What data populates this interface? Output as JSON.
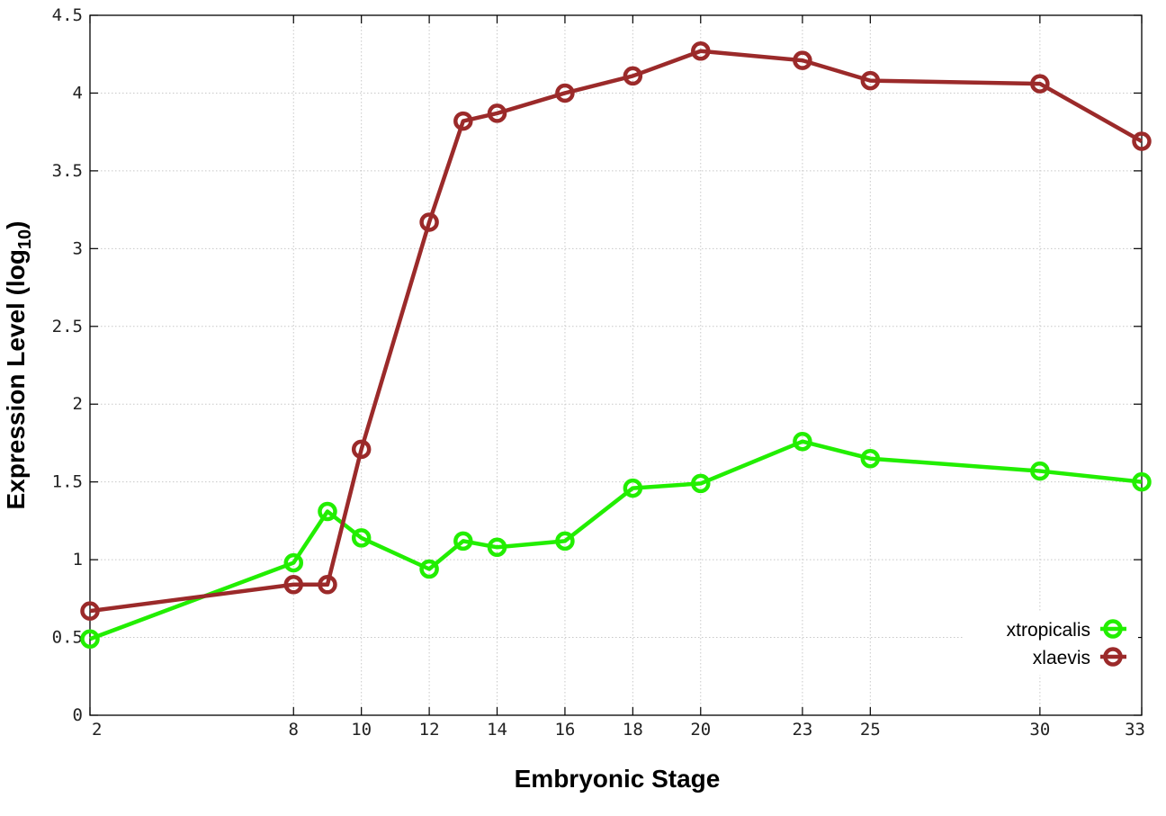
{
  "chart_data": {
    "type": "line",
    "xlabel": "Embryonic Stage",
    "ylabel_main": "Expression Level (log",
    "ylabel_sub": "10",
    "ylabel_close": ")",
    "xlim": [
      2,
      33
    ],
    "ylim": [
      0,
      4.5
    ],
    "x_ticks": [
      2,
      8,
      10,
      12,
      14,
      16,
      18,
      20,
      23,
      25,
      30,
      33
    ],
    "y_ticks": [
      0,
      0.5,
      1,
      1.5,
      2,
      2.5,
      3,
      3.5,
      4,
      4.5
    ],
    "y_tick_labels": [
      "0",
      "0.5",
      "1",
      "1.5",
      "2",
      "2.5",
      "3",
      "3.5",
      "4",
      "4.5"
    ],
    "grid": true,
    "legend_position": "bottom-right",
    "series": [
      {
        "name": "xtropicalis",
        "color": "#22ee00",
        "x": [
          2,
          8,
          9,
          10,
          12,
          13,
          14,
          16,
          18,
          20,
          23,
          25,
          30,
          33
        ],
        "y": [
          0.49,
          0.98,
          1.31,
          1.14,
          0.94,
          1.12,
          1.08,
          1.12,
          1.46,
          1.49,
          1.76,
          1.65,
          1.57,
          1.5
        ]
      },
      {
        "name": "xlaevis",
        "color": "#9b2a2a",
        "x": [
          2,
          8,
          9,
          10,
          12,
          13,
          14,
          16,
          18,
          20,
          23,
          25,
          30,
          33
        ],
        "y": [
          0.67,
          0.84,
          0.84,
          1.71,
          3.17,
          3.82,
          3.87,
          4.0,
          4.11,
          4.27,
          4.21,
          4.08,
          4.06,
          3.69
        ]
      }
    ]
  }
}
